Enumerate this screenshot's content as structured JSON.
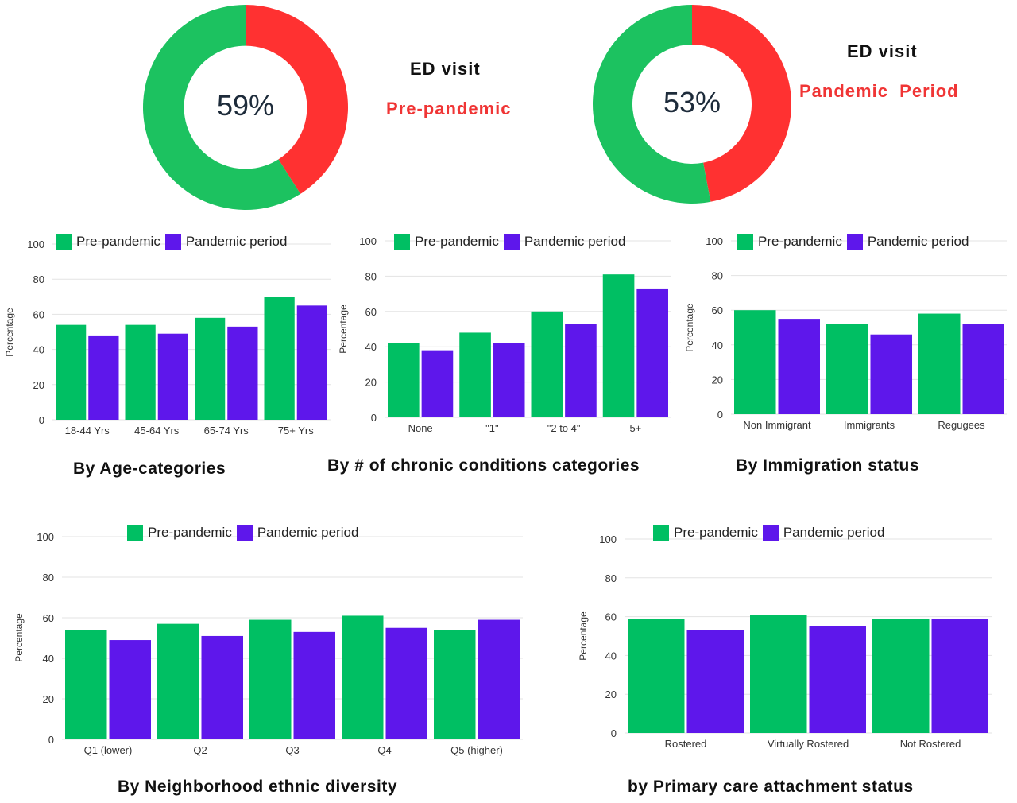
{
  "colors": {
    "pre": "#00bf63",
    "pan": "#5e17eb",
    "donut_green": "#1cc260",
    "donut_red": "#ff3131",
    "grid": "#e3e3e3"
  },
  "donuts": [
    {
      "pct_label": "59%",
      "value": 59,
      "title": "ED visit",
      "subtitle": "Pre-pandemic"
    },
    {
      "pct_label": "53%",
      "value": 53,
      "title": "ED visit",
      "subtitle": "Pandemic  Period"
    }
  ],
  "legend": {
    "pre": "Pre-pandemic",
    "pan": "Pandemic period"
  },
  "chart_data": [
    {
      "type": "bar",
      "title": "By Age-categories",
      "ylabel": "Percentage",
      "ylim": [
        0,
        100
      ],
      "yticks": [
        "0",
        "20",
        "40",
        "60",
        "80",
        "100"
      ],
      "categories": [
        "18-44 Yrs",
        "45-64 Yrs",
        "65-74 Yrs",
        "75+ Yrs"
      ],
      "series": [
        {
          "name": "Pre-pandemic",
          "values": [
            54,
            54,
            58,
            70
          ]
        },
        {
          "name": "Pandemic period",
          "values": [
            48,
            49,
            53,
            65
          ]
        }
      ]
    },
    {
      "type": "bar",
      "title": "By # of chronic conditions categories",
      "ylabel": "Percentage",
      "ylim": [
        0,
        100
      ],
      "yticks": [
        "0",
        "20",
        "40",
        "60",
        "80",
        "100"
      ],
      "categories": [
        "None",
        "\"1\"",
        "\"2 to 4\"",
        "5+"
      ],
      "series": [
        {
          "name": "Pre-pandemic",
          "values": [
            42,
            48,
            60,
            81
          ]
        },
        {
          "name": "Pandemic period",
          "values": [
            38,
            42,
            53,
            73
          ]
        }
      ]
    },
    {
      "type": "bar",
      "title": "By Immigration status",
      "ylabel": "Percentage",
      "ylim": [
        0,
        100
      ],
      "yticks": [
        "0",
        "20",
        "40",
        "60",
        "80",
        "100"
      ],
      "categories": [
        "Non Immigrant",
        "Immigrants",
        "Regugees"
      ],
      "series": [
        {
          "name": "Pre-pandemic",
          "values": [
            60,
            52,
            58
          ]
        },
        {
          "name": "Pandemic period",
          "values": [
            55,
            46,
            52
          ]
        }
      ]
    },
    {
      "type": "bar",
      "title": "By Neighborhood ethnic diversity",
      "ylabel": "Percentage",
      "ylim": [
        0,
        100
      ],
      "yticks": [
        "0",
        "20",
        "40",
        "60",
        "80",
        "100"
      ],
      "categories": [
        "Q1 (lower)",
        "Q2",
        "Q3",
        "Q4",
        "Q5 (higher)"
      ],
      "series": [
        {
          "name": "Pre-pandemic",
          "values": [
            54,
            57,
            59,
            61,
            54
          ]
        },
        {
          "name": "Pandemic period",
          "values": [
            49,
            51,
            53,
            55,
            59
          ]
        }
      ]
    },
    {
      "type": "bar",
      "title": "by Primary care attachment status",
      "ylabel": "Percentage",
      "ylim": [
        0,
        100
      ],
      "yticks": [
        "0",
        "20",
        "40",
        "60",
        "80",
        "100"
      ],
      "categories": [
        "Rostered",
        "Virtually Rostered",
        "Not Rostered"
      ],
      "series": [
        {
          "name": "Pre-pandemic",
          "values": [
            59,
            61,
            59
          ]
        },
        {
          "name": "Pandemic period",
          "values": [
            53,
            55,
            59
          ]
        }
      ]
    }
  ]
}
